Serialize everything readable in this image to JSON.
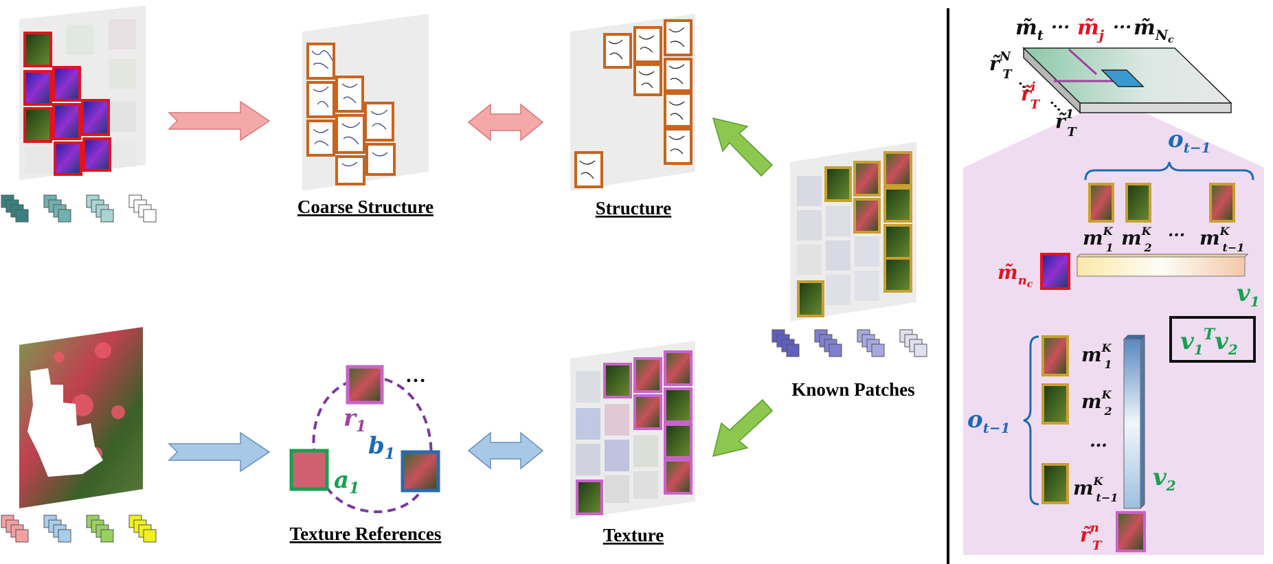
{
  "labels": {
    "coarse_structure": "Coarse Structure",
    "structure": "Structure",
    "known_patches": "Known Patches",
    "texture_references": "Texture References",
    "texture": "Texture",
    "ellipsis": "…",
    "ellipsis_short": "···"
  },
  "graph": {
    "r1": "r",
    "r1_sub": "1",
    "a1": "a",
    "a1_sub": "1",
    "b1": "b",
    "b1_sub": "1"
  },
  "panel": {
    "m_t": "m̃",
    "m_t_sub": "t",
    "m_j": "m̃",
    "m_j_sub": "j",
    "m_Nc": "m̃",
    "m_Nc_sub": "N",
    "m_Nc_subsub": "c",
    "dots": "···",
    "r_T_N": "r̃",
    "r_T_N_sup": "N",
    "r_T_i": "r̃",
    "r_T_i_sup": "i",
    "r_T_1": "r̃",
    "r_T_1_sup": "1",
    "T": "T",
    "o_t_1": "o",
    "o_t_1_sub": "t−1",
    "m1K": "m",
    "m2K": "m",
    "mt1K": "m",
    "sup_K": "K",
    "sub_1": "1",
    "sub_2": "2",
    "sub_t1": "t−1",
    "m_nc": "m̃",
    "m_nc_sub": "n",
    "m_nc_subsub": "c",
    "v1": "v",
    "v1_sub": "1",
    "v2": "v",
    "v2_sub": "2",
    "formula_v": "v",
    "formula_sub1": "1",
    "formula_T": "T",
    "formula_v2": "v",
    "formula_sub2": "2",
    "r_T_n": "r̃",
    "r_T_n_sup": "n",
    "dots_v": "…"
  },
  "colors": {
    "red_border": "#e0141e",
    "orange_border": "#c8641e",
    "gold_border": "#c8a032",
    "pink_border": "#c864c8",
    "green_border": "#18a050",
    "blue_border": "#2a6ab0",
    "purple_dash": "#7a3aa0",
    "blue_text": "#1a6ab8",
    "green_text": "#18a050",
    "red_text": "#e0141e",
    "magenta_text": "#a040a0",
    "arrow_red": "#f5a8a8",
    "arrow_blue": "#a8c8e8",
    "arrow_green": "#8cc850",
    "panel_bg": "#f0dcf0"
  },
  "stack_colors": {
    "top_left": [
      "#3a8080",
      "#70b0b0",
      "#a8d4d4",
      "#ffffff"
    ],
    "bottom_left": [
      "#f4a0a0",
      "#a8ccec",
      "#98d060",
      "#f0f020"
    ],
    "known": [
      "#6060c0",
      "#8080d0",
      "#a8a8e0",
      "#e0e0f0"
    ]
  }
}
